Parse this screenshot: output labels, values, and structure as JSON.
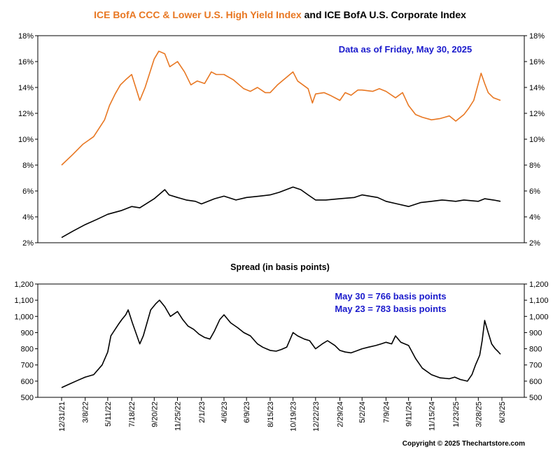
{
  "chart_data": [
    {
      "type": "line",
      "title_part1": "ICE BofA CCC & Lower U.S. High Yield Index",
      "title_part2": " and ICE BofA U.S. Corporate Index",
      "annotation": "Data as of Friday, May 30, 2025",
      "ylim": [
        2,
        18
      ],
      "yticks": [
        "2%",
        "4%",
        "6%",
        "8%",
        "10%",
        "12%",
        "14%",
        "16%",
        "18%"
      ],
      "ytick_values": [
        2,
        4,
        6,
        8,
        10,
        12,
        14,
        16,
        18
      ],
      "grid": false,
      "x_range": [
        "2021-12-31",
        "2025-05-30"
      ],
      "series": [
        {
          "color": "#e87722",
          "x": [
            "2021-12-31",
            "2022-01-31",
            "2022-03-01",
            "2022-04-01",
            "2022-05-02",
            "2022-05-16",
            "2022-06-01",
            "2022-06-16",
            "2022-07-01",
            "2022-07-18",
            "2022-08-10",
            "2022-08-25",
            "2022-09-20",
            "2022-10-03",
            "2022-10-20",
            "2022-11-03",
            "2022-11-25",
            "2022-12-15",
            "2023-01-02",
            "2023-01-20",
            "2023-02-10",
            "2023-03-01",
            "2023-03-15",
            "2023-04-06",
            "2023-05-02",
            "2023-06-01",
            "2023-06-20",
            "2023-07-10",
            "2023-08-01",
            "2023-08-15",
            "2023-09-05",
            "2023-10-19",
            "2023-11-01",
            "2023-12-01",
            "2023-12-13",
            "2023-12-22",
            "2024-01-15",
            "2024-02-01",
            "2024-02-29",
            "2024-03-15",
            "2024-04-01",
            "2024-04-20",
            "2024-05-02",
            "2024-06-01",
            "2024-06-20",
            "2024-07-09",
            "2024-08-05",
            "2024-08-25",
            "2024-09-11",
            "2024-10-01",
            "2024-10-20",
            "2024-11-15",
            "2024-12-10",
            "2025-01-05",
            "2025-01-23",
            "2025-02-15",
            "2025-03-01",
            "2025-03-15",
            "2025-04-05",
            "2025-04-15",
            "2025-04-25",
            "2025-05-10",
            "2025-05-30"
          ],
          "y": [
            8.0,
            8.8,
            9.6,
            10.2,
            11.5,
            12.6,
            13.5,
            14.2,
            14.6,
            15.0,
            13.0,
            14.0,
            16.2,
            16.8,
            16.6,
            15.6,
            16.0,
            15.2,
            14.2,
            14.5,
            14.3,
            15.2,
            15.0,
            15.0,
            14.6,
            13.9,
            13.7,
            14.0,
            13.6,
            13.6,
            14.2,
            15.2,
            14.5,
            13.9,
            12.8,
            13.5,
            13.6,
            13.4,
            13.0,
            13.6,
            13.4,
            13.8,
            13.8,
            13.7,
            13.9,
            13.7,
            13.2,
            13.6,
            12.6,
            11.9,
            11.7,
            11.5,
            11.6,
            11.8,
            11.4,
            11.9,
            12.4,
            13.0,
            15.1,
            14.3,
            13.6,
            13.2,
            13.0
          ]
        },
        {
          "color": "#000000",
          "x": [
            "2021-12-31",
            "2022-02-01",
            "2022-03-08",
            "2022-04-10",
            "2022-05-11",
            "2022-06-20",
            "2022-07-18",
            "2022-08-10",
            "2022-09-20",
            "2022-10-20",
            "2022-11-01",
            "2022-11-25",
            "2022-12-20",
            "2023-01-15",
            "2023-02-01",
            "2023-03-10",
            "2023-04-06",
            "2023-05-10",
            "2023-06-09",
            "2023-07-15",
            "2023-08-15",
            "2023-09-10",
            "2023-10-19",
            "2023-11-10",
            "2023-12-01",
            "2023-12-22",
            "2024-01-20",
            "2024-02-29",
            "2024-04-10",
            "2024-05-02",
            "2024-06-15",
            "2024-07-09",
            "2024-08-10",
            "2024-09-11",
            "2024-10-15",
            "2024-11-15",
            "2024-12-15",
            "2025-01-23",
            "2025-02-15",
            "2025-03-28",
            "2025-04-15",
            "2025-05-10",
            "2025-05-30"
          ],
          "y": [
            2.4,
            2.9,
            3.4,
            3.8,
            4.2,
            4.5,
            4.8,
            4.7,
            5.4,
            6.1,
            5.7,
            5.5,
            5.3,
            5.2,
            5.0,
            5.4,
            5.6,
            5.3,
            5.5,
            5.6,
            5.7,
            5.9,
            6.3,
            6.1,
            5.7,
            5.3,
            5.3,
            5.4,
            5.5,
            5.7,
            5.5,
            5.2,
            5.0,
            4.8,
            5.1,
            5.2,
            5.3,
            5.2,
            5.3,
            5.2,
            5.4,
            5.3,
            5.2
          ]
        }
      ]
    },
    {
      "type": "line",
      "title": "Spread (in basis points)",
      "annotation_lines": [
        "May 30 = 766 basis points",
        "May 23 = 783 basis points"
      ],
      "ylim": [
        500,
        1200
      ],
      "yticks": [
        "500",
        "600",
        "700",
        "800",
        "900",
        "1,000",
        "1,100",
        "1,200"
      ],
      "ytick_values": [
        500,
        600,
        700,
        800,
        900,
        1000,
        1100,
        1200
      ],
      "grid": false,
      "x_range": [
        "2021-12-31",
        "2025-05-30"
      ],
      "xtick_labels": [
        "12/31/21",
        "3/8/22",
        "5/11/22",
        "7/18/22",
        "9/20/22",
        "11/25/22",
        "2/1/23",
        "4/6/23",
        "6/9/23",
        "8/15/23",
        "10/19/23",
        "12/22/23",
        "2/29/24",
        "5/2/24",
        "7/9/24",
        "9/11/24",
        "11/15/24",
        "1/23/25",
        "3/28/25",
        "6/3/25"
      ],
      "xtick_dates": [
        "2021-12-31",
        "2022-03-08",
        "2022-05-11",
        "2022-07-18",
        "2022-09-20",
        "2022-11-25",
        "2023-02-01",
        "2023-04-06",
        "2023-06-09",
        "2023-08-15",
        "2023-10-19",
        "2023-12-22",
        "2024-02-29",
        "2024-05-02",
        "2024-07-09",
        "2024-09-11",
        "2024-11-15",
        "2025-01-23",
        "2025-03-28",
        "2025-06-03"
      ],
      "series": [
        {
          "color": "#000000",
          "x": [
            "2021-12-31",
            "2022-01-20",
            "2022-02-15",
            "2022-03-08",
            "2022-04-01",
            "2022-04-25",
            "2022-05-11",
            "2022-05-20",
            "2022-06-10",
            "2022-06-20",
            "2022-07-01",
            "2022-07-08",
            "2022-07-20",
            "2022-08-10",
            "2022-08-20",
            "2022-09-10",
            "2022-09-25",
            "2022-10-05",
            "2022-10-20",
            "2022-11-05",
            "2022-11-25",
            "2022-12-10",
            "2022-12-25",
            "2023-01-10",
            "2023-01-25",
            "2023-02-10",
            "2023-02-25",
            "2023-03-10",
            "2023-03-25",
            "2023-04-06",
            "2023-04-25",
            "2023-05-15",
            "2023-06-01",
            "2023-06-20",
            "2023-07-10",
            "2023-07-25",
            "2023-08-15",
            "2023-09-01",
            "2023-09-15",
            "2023-10-01",
            "2023-10-19",
            "2023-11-01",
            "2023-11-20",
            "2023-12-05",
            "2023-12-22",
            "2024-01-10",
            "2024-01-25",
            "2024-02-15",
            "2024-02-29",
            "2024-03-15",
            "2024-04-01",
            "2024-04-20",
            "2024-05-02",
            "2024-05-20",
            "2024-06-10",
            "2024-06-25",
            "2024-07-09",
            "2024-07-25",
            "2024-08-05",
            "2024-08-20",
            "2024-09-11",
            "2024-10-01",
            "2024-10-20",
            "2024-11-15",
            "2024-12-10",
            "2025-01-05",
            "2025-01-20",
            "2025-02-05",
            "2025-02-25",
            "2025-03-10",
            "2025-03-20",
            "2025-04-01",
            "2025-04-08",
            "2025-04-15",
            "2025-04-25",
            "2025-05-05",
            "2025-05-15",
            "2025-05-23",
            "2025-05-30"
          ],
          "y": [
            560,
            580,
            605,
            625,
            640,
            700,
            780,
            880,
            950,
            980,
            1010,
            1040,
            960,
            830,
            880,
            1040,
            1080,
            1100,
            1060,
            1000,
            1030,
            980,
            940,
            920,
            890,
            870,
            860,
            910,
            980,
            1010,
            960,
            930,
            900,
            880,
            830,
            810,
            790,
            785,
            795,
            810,
            900,
            880,
            860,
            850,
            800,
            830,
            850,
            820,
            790,
            780,
            775,
            790,
            800,
            810,
            820,
            830,
            840,
            830,
            880,
            840,
            820,
            740,
            680,
            640,
            620,
            615,
            625,
            610,
            600,
            640,
            700,
            760,
            850,
            975,
            900,
            830,
            800,
            783,
            766
          ]
        }
      ]
    }
  ],
  "copyright": "Copyright © 2025 Thechartstore.com"
}
